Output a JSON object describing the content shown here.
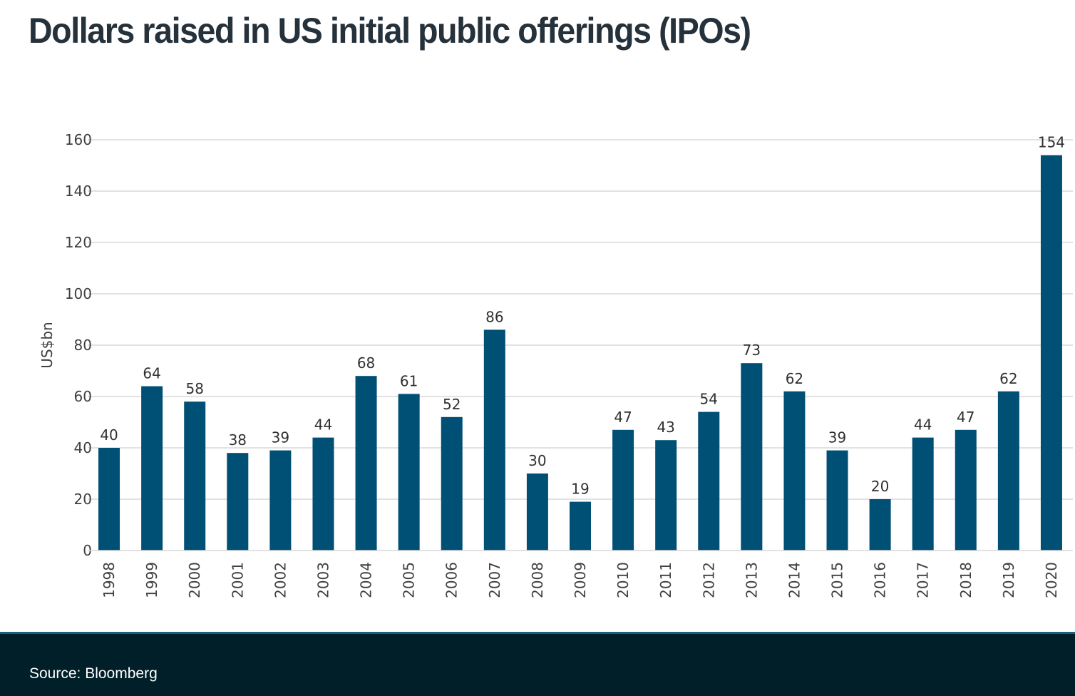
{
  "title": "Dollars raised in US initial public offerings (IPOs)",
  "footer": {
    "source": "Source: Bloomberg"
  },
  "colors": {
    "bar": "#004f74",
    "grid": "#d9d9d9",
    "title": "#25313b",
    "footer_bg": "#011f29"
  },
  "chart_data": {
    "type": "bar",
    "title": "Dollars raised in US initial public offerings (IPOs)",
    "xlabel": "",
    "ylabel": "US$bn",
    "ylim": [
      0,
      160
    ],
    "yticks": [
      0,
      20,
      40,
      60,
      80,
      100,
      120,
      140,
      160
    ],
    "grid": true,
    "legend": "none",
    "categories": [
      "1998",
      "1999",
      "2000",
      "2001",
      "2002",
      "2003",
      "2004",
      "2005",
      "2006",
      "2007",
      "2008",
      "2009",
      "2010",
      "2011",
      "2012",
      "2013",
      "2014",
      "2015",
      "2016",
      "2017",
      "2018",
      "2019",
      "2020"
    ],
    "values": [
      40,
      64,
      58,
      38,
      39,
      44,
      68,
      61,
      52,
      86,
      30,
      19,
      47,
      43,
      54,
      73,
      62,
      39,
      20,
      44,
      47,
      62,
      154
    ],
    "data_labels": true,
    "source": "Bloomberg"
  }
}
